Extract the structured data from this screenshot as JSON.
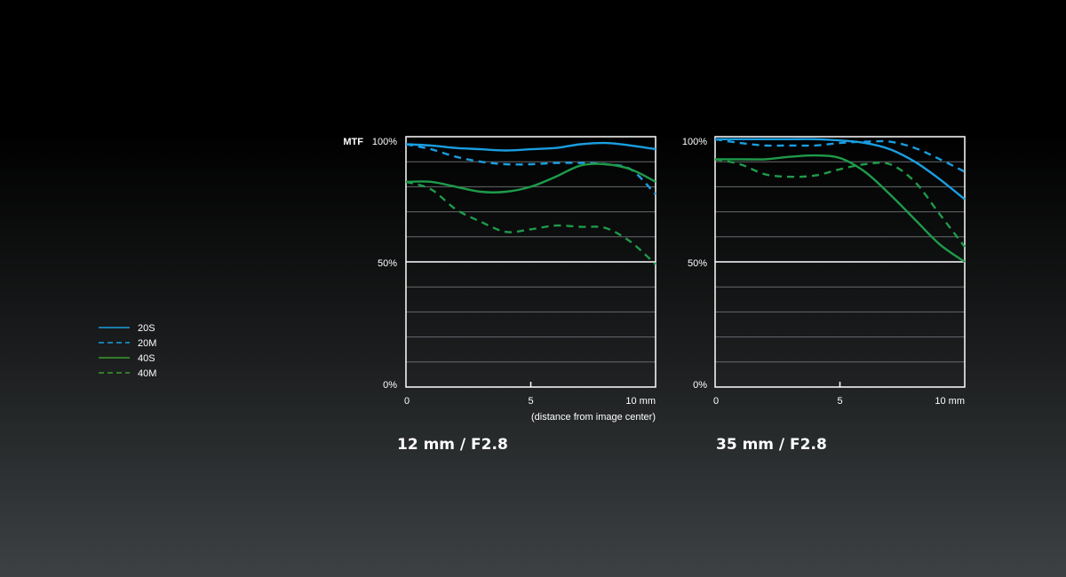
{
  "mtf_label": "MTF",
  "y_axis_ticks": [
    "100%",
    "50%",
    "0%"
  ],
  "x_axis_ticks": [
    "0",
    "5",
    "10 mm"
  ],
  "x_axis_note": "(distance from image center)",
  "legend": [
    {
      "label": "20S",
      "color": "#1a9ee0",
      "dashed": false
    },
    {
      "label": "20M",
      "color": "#1a9ee0",
      "dashed": true
    },
    {
      "label": "40S",
      "color": "#1e9b4a",
      "dashed": false
    },
    {
      "label": "40M",
      "color": "#1e9b4a",
      "dashed": true
    }
  ],
  "colors": {
    "blue": "#1a9ee0",
    "green": "#1e9b4a",
    "grid_minor": "#666a6c",
    "grid_major": "#ffffff",
    "frame": "#ffffff"
  },
  "chart_data": [
    {
      "type": "line",
      "title": "12 mm / F2.8",
      "xlabel": "(distance from image center)",
      "ylabel": "MTF",
      "xlim": [
        0,
        10
      ],
      "ylim": [
        0,
        100
      ],
      "x_ticks": [
        0,
        5,
        10
      ],
      "y_ticks": [
        0,
        50,
        100
      ],
      "grid": true,
      "series": [
        {
          "name": "20S",
          "dashed": false,
          "color": "#1a9ee0",
          "x": [
            0,
            1,
            2,
            3,
            4,
            5,
            6,
            7,
            8,
            9,
            10
          ],
          "y": [
            97,
            96.5,
            95.5,
            95,
            94.5,
            95,
            95.5,
            97,
            97.5,
            96.5,
            95
          ]
        },
        {
          "name": "20M",
          "dashed": true,
          "color": "#1a9ee0",
          "x": [
            0,
            1,
            2,
            3,
            4,
            5,
            6,
            7,
            8,
            9,
            10
          ],
          "y": [
            97,
            95,
            92,
            90,
            89,
            89,
            89.5,
            89.5,
            89,
            87,
            77
          ]
        },
        {
          "name": "40S",
          "dashed": false,
          "color": "#1e9b4a",
          "x": [
            0,
            1,
            2,
            3,
            4,
            5,
            6,
            7,
            8,
            9,
            10
          ],
          "y": [
            82,
            82,
            80,
            78,
            78,
            80,
            84,
            88.5,
            89,
            87,
            82
          ]
        },
        {
          "name": "40M",
          "dashed": true,
          "color": "#1e9b4a",
          "x": [
            0,
            1,
            2,
            3,
            4,
            5,
            6,
            7,
            8,
            9,
            10
          ],
          "y": [
            82,
            79,
            71,
            66,
            62,
            63,
            64.5,
            64,
            63.5,
            58,
            49
          ]
        }
      ]
    },
    {
      "type": "line",
      "title": "35 mm / F2.8",
      "xlabel": "",
      "ylabel": "",
      "xlim": [
        0,
        10
      ],
      "ylim": [
        0,
        100
      ],
      "x_ticks": [
        0,
        5,
        10
      ],
      "y_ticks": [
        0,
        50,
        100
      ],
      "grid": true,
      "series": [
        {
          "name": "20S",
          "dashed": false,
          "color": "#1a9ee0",
          "x": [
            0,
            1,
            2,
            3,
            4,
            5,
            6,
            7,
            8,
            9,
            10
          ],
          "y": [
            99,
            99,
            99,
            99,
            99,
            98.5,
            97.5,
            95,
            90,
            83,
            75
          ]
        },
        {
          "name": "20M",
          "dashed": true,
          "color": "#1a9ee0",
          "x": [
            0,
            1,
            2,
            3,
            4,
            5,
            6,
            7,
            8,
            9,
            10
          ],
          "y": [
            99,
            97.5,
            96.5,
            96.5,
            96.5,
            97.5,
            98,
            98,
            95.5,
            91,
            86
          ]
        },
        {
          "name": "40S",
          "dashed": false,
          "color": "#1e9b4a",
          "x": [
            0,
            1,
            2,
            3,
            4,
            5,
            6,
            7,
            8,
            9,
            10
          ],
          "y": [
            91,
            91,
            91,
            92,
            92.5,
            91.5,
            86,
            77,
            67,
            57,
            50
          ]
        },
        {
          "name": "40M",
          "dashed": true,
          "color": "#1e9b4a",
          "x": [
            0,
            1,
            2,
            3,
            4,
            5,
            6,
            7,
            8,
            9,
            10
          ],
          "y": [
            91,
            89,
            85,
            84,
            84.5,
            87,
            89,
            89,
            82,
            69,
            56
          ]
        }
      ]
    }
  ]
}
